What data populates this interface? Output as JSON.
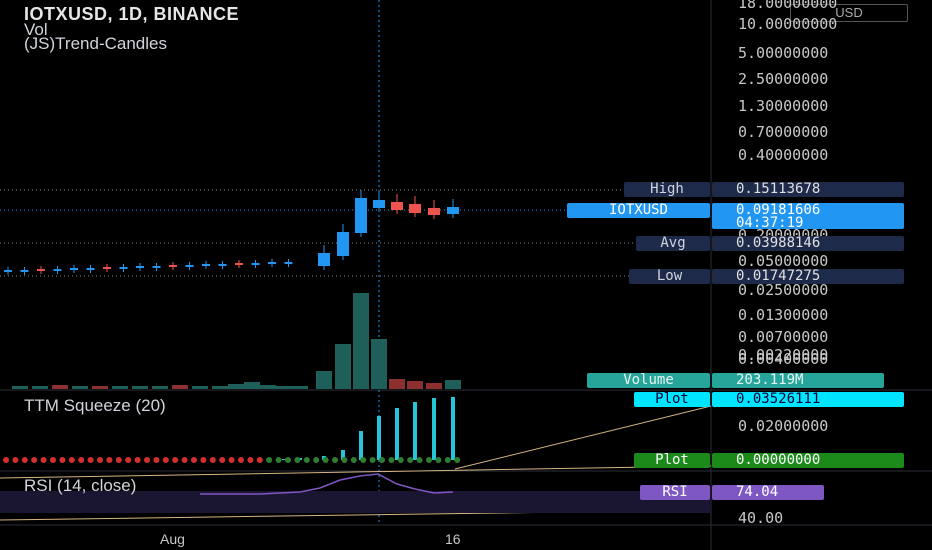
{
  "header": {
    "symbol_line": "IOTXUSD, 1D, BINANCE",
    "indicator_vol": "Vol",
    "indicator_trend": "(JS)Trend-Candles"
  },
  "price_axis": {
    "currency": "USD",
    "ticks": [
      "18.00000000",
      "10.00000000",
      "5.00000000",
      "2.50000000",
      "1.30000000",
      "0.70000000",
      "0.40000000",
      "0.20000000",
      "0.05000000",
      "0.02500000",
      "0.01300000",
      "0.00700000",
      "0.00400000",
      "0.00220000"
    ]
  },
  "price_tags": {
    "high_label": "High",
    "high_value": "0.15113678",
    "symbol_label": "IOTXUSD",
    "last_value": "0.09181606",
    "countdown": "04:37:19",
    "avg_label": "Avg",
    "avg_value": "0.03988146",
    "low_label": "Low",
    "low_value": "0.01747275",
    "volume_label": "Volume",
    "volume_value": "203.119M"
  },
  "squeeze": {
    "title": "TTM Squeeze (20)",
    "plot1_label": "Plot",
    "plot1_value": "0.03526111",
    "plot2_label": "Plot",
    "plot2_value": "0.00000000",
    "axis_tick": "0.02000000"
  },
  "rsi": {
    "title": "RSI (14, close)",
    "label": "RSI",
    "value": "74.04",
    "axis_tick": "40.00"
  },
  "time_axis": {
    "label_aug": "Aug",
    "label_16": "16"
  },
  "colors": {
    "bull": "#2196f3",
    "bear": "#ef5350",
    "green": "#26a69a",
    "axis_bg": "#000000",
    "accent": "#2196f3",
    "rsi": "#7e57c2",
    "squeeze_bar": "#26c6da",
    "dot_red": "#d32f2f",
    "dot_green": "#2e7d32"
  }
}
